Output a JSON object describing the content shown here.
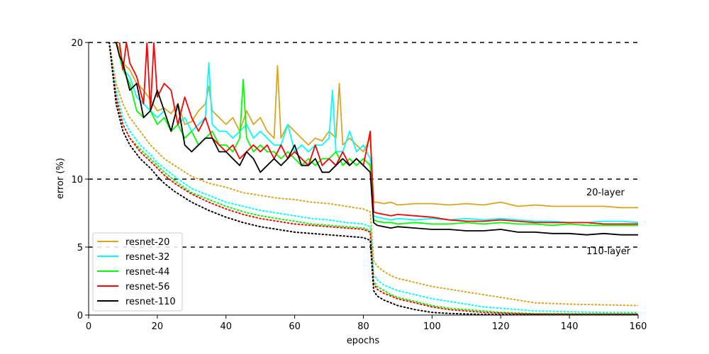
{
  "chart_data": {
    "type": "line",
    "xlabel": "epochs",
    "ylabel": "error (%)",
    "xlim": [
      0,
      160
    ],
    "ylim": [
      0,
      20
    ],
    "xticks": [
      "0",
      "20",
      "40",
      "60",
      "80",
      "100",
      "120",
      "140",
      "160"
    ],
    "yticks": [
      "0",
      "5",
      "10",
      "20"
    ],
    "reference_lines": [
      5,
      10,
      20
    ],
    "grid": false,
    "legend_location": "lower-left",
    "annotations": [
      {
        "text": "20-layer",
        "x": 145,
        "y": 9.0
      },
      {
        "text": "110-layer",
        "x": 145,
        "y": 4.7
      }
    ],
    "series": [
      {
        "name": "resnet-20",
        "color": "#DAA520",
        "test": {
          "x": [
            7,
            8,
            9,
            10,
            12,
            14,
            16,
            18,
            20,
            22,
            24,
            26,
            28,
            30,
            32,
            34,
            35,
            36,
            38,
            40,
            42,
            44,
            46,
            48,
            50,
            52,
            54,
            55,
            56,
            58,
            60,
            62,
            64,
            66,
            68,
            70,
            72,
            73,
            74,
            76,
            78,
            80,
            82,
            83,
            84,
            86,
            88,
            90,
            95,
            100,
            105,
            110,
            115,
            120,
            125,
            130,
            135,
            140,
            145,
            150,
            155,
            160
          ],
          "y": [
            20,
            20,
            19.5,
            18.5,
            18.0,
            17.0,
            16.5,
            15.8,
            15.0,
            15.2,
            14.8,
            15.5,
            14.0,
            14.2,
            15.0,
            15.5,
            16.8,
            15.0,
            14.5,
            14.0,
            14.5,
            13.5,
            15.0,
            14.0,
            14.5,
            13.5,
            13.0,
            18.3,
            13.0,
            14.0,
            13.5,
            13.0,
            12.5,
            13.0,
            12.8,
            13.5,
            13.0,
            17.0,
            12.5,
            13.0,
            12.5,
            12.0,
            13.0,
            8.3,
            8.3,
            8.2,
            8.3,
            8.1,
            8.2,
            8.2,
            8.1,
            8.2,
            8.1,
            8.3,
            8.0,
            8.1,
            8.0,
            8.0,
            8.0,
            8.0,
            7.9,
            7.9
          ]
        },
        "train": {
          "x": [
            6,
            8,
            10,
            12,
            15,
            18,
            20,
            22,
            25,
            30,
            35,
            40,
            45,
            50,
            55,
            60,
            65,
            70,
            75,
            80,
            82,
            83,
            84,
            86,
            88,
            90,
            95,
            100,
            105,
            110,
            115,
            120,
            125,
            130,
            140,
            150,
            160
          ],
          "y": [
            20,
            17,
            15.5,
            14.5,
            13.5,
            12.5,
            12.0,
            11.5,
            11.0,
            10.2,
            9.7,
            9.4,
            9.0,
            8.8,
            8.6,
            8.5,
            8.3,
            8.2,
            8.0,
            7.8,
            7.6,
            4.0,
            3.6,
            3.2,
            2.9,
            2.7,
            2.4,
            2.1,
            1.9,
            1.7,
            1.5,
            1.3,
            1.1,
            0.9,
            0.8,
            0.75,
            0.7
          ]
        }
      },
      {
        "name": "resnet-32",
        "color": "#00FFFF",
        "test": {
          "x": [
            7,
            8,
            10,
            12,
            14,
            16,
            18,
            20,
            22,
            24,
            26,
            28,
            30,
            32,
            34,
            35,
            36,
            38,
            40,
            42,
            44,
            46,
            48,
            50,
            52,
            54,
            56,
            58,
            60,
            62,
            64,
            66,
            68,
            70,
            71,
            72,
            74,
            76,
            78,
            80,
            82,
            83,
            84,
            86,
            88,
            90,
            95,
            100,
            105,
            110,
            115,
            120,
            125,
            130,
            135,
            140,
            145,
            150,
            155,
            160
          ],
          "y": [
            20,
            20,
            18.0,
            17.5,
            16.0,
            15.5,
            15.0,
            14.5,
            15.0,
            13.5,
            14.0,
            14.5,
            13.5,
            14.0,
            14.5,
            18.5,
            14.0,
            13.5,
            13.5,
            13.0,
            13.5,
            14.0,
            13.0,
            13.5,
            13.0,
            12.5,
            12.5,
            14.0,
            12.0,
            12.5,
            12.0,
            12.5,
            12.5,
            13.0,
            16.5,
            12.0,
            12.0,
            13.5,
            12.0,
            12.5,
            11.5,
            7.3,
            7.2,
            7.1,
            7.0,
            7.1,
            7.0,
            7.1,
            7.0,
            7.1,
            7.0,
            7.1,
            7.0,
            6.9,
            6.9,
            6.8,
            6.8,
            6.9,
            6.9,
            6.8
          ]
        },
        "train": {
          "x": [
            6,
            8,
            10,
            12,
            15,
            18,
            20,
            22,
            25,
            30,
            35,
            40,
            45,
            50,
            55,
            60,
            65,
            70,
            75,
            80,
            82,
            83,
            84,
            86,
            88,
            90,
            95,
            100,
            105,
            110,
            115,
            120,
            125,
            130,
            140,
            150,
            160
          ],
          "y": [
            20,
            16.5,
            14.5,
            13.5,
            12.5,
            11.8,
            11.2,
            10.8,
            10.2,
            9.3,
            8.8,
            8.3,
            8.0,
            7.7,
            7.5,
            7.3,
            7.1,
            7.0,
            6.8,
            6.7,
            6.5,
            3.0,
            2.6,
            2.2,
            2.0,
            1.8,
            1.5,
            1.2,
            1.0,
            0.8,
            0.6,
            0.5,
            0.4,
            0.3,
            0.25,
            0.2,
            0.2
          ]
        }
      },
      {
        "name": "resnet-44",
        "color": "#00FF00",
        "test": {
          "x": [
            7,
            8,
            10,
            12,
            14,
            16,
            18,
            20,
            22,
            24,
            26,
            28,
            30,
            32,
            34,
            36,
            38,
            40,
            42,
            44,
            45,
            46,
            48,
            50,
            52,
            54,
            56,
            58,
            60,
            62,
            64,
            66,
            68,
            70,
            72,
            74,
            76,
            78,
            80,
            82,
            83,
            84,
            86,
            88,
            90,
            95,
            100,
            105,
            110,
            115,
            120,
            125,
            130,
            135,
            140,
            145,
            150,
            155,
            160
          ],
          "y": [
            20,
            20,
            18.0,
            17.0,
            15.0,
            14.5,
            15.0,
            14.0,
            14.5,
            13.5,
            14.0,
            13.0,
            13.5,
            12.5,
            13.0,
            13.5,
            12.5,
            12.5,
            12.0,
            13.0,
            17.3,
            13.0,
            12.0,
            12.5,
            12.0,
            12.0,
            11.5,
            12.0,
            11.5,
            11.0,
            11.5,
            11.0,
            11.5,
            11.5,
            12.0,
            11.0,
            11.5,
            11.0,
            11.5,
            11.0,
            7.0,
            6.9,
            6.8,
            6.8,
            6.7,
            6.8,
            6.7,
            6.7,
            6.8,
            6.7,
            6.8,
            6.7,
            6.7,
            6.6,
            6.7,
            6.6,
            6.6,
            6.6,
            6.6
          ]
        },
        "train": {
          "x": [
            6,
            8,
            10,
            12,
            15,
            18,
            20,
            22,
            25,
            30,
            35,
            40,
            45,
            50,
            55,
            60,
            65,
            70,
            75,
            80,
            82,
            83,
            84,
            86,
            88,
            90,
            95,
            100,
            105,
            110,
            115,
            120,
            125,
            130,
            140,
            150,
            160
          ],
          "y": [
            20,
            16.0,
            14.0,
            13.0,
            12.2,
            11.5,
            11.0,
            10.5,
            9.9,
            9.0,
            8.5,
            8.0,
            7.6,
            7.3,
            7.1,
            6.9,
            6.7,
            6.6,
            6.5,
            6.4,
            6.2,
            2.5,
            2.1,
            1.8,
            1.5,
            1.3,
            1.0,
            0.7,
            0.5,
            0.4,
            0.3,
            0.2,
            0.15,
            0.1,
            0.1,
            0.1,
            0.1
          ]
        }
      },
      {
        "name": "resnet-56",
        "color": "#FF0000",
        "test": {
          "x": [
            7,
            8,
            9,
            10,
            11,
            12,
            14,
            16,
            17,
            18,
            19,
            20,
            22,
            24,
            26,
            28,
            30,
            32,
            34,
            36,
            38,
            40,
            42,
            44,
            46,
            48,
            50,
            52,
            54,
            56,
            58,
            60,
            62,
            64,
            66,
            68,
            70,
            72,
            74,
            76,
            78,
            80,
            82,
            83,
            84,
            86,
            88,
            90,
            95,
            100,
            105,
            110,
            115,
            120,
            125,
            130,
            135,
            140,
            145,
            150,
            155,
            160
          ],
          "y": [
            20,
            20,
            20,
            18.0,
            20.0,
            18.5,
            17.5,
            15.5,
            20.0,
            15.0,
            20.0,
            16.0,
            17.0,
            16.5,
            14.0,
            16.0,
            14.5,
            13.5,
            14.5,
            13.0,
            12.5,
            12.0,
            12.5,
            11.5,
            12.0,
            12.5,
            12.0,
            12.5,
            11.5,
            12.5,
            11.5,
            12.0,
            11.5,
            11.0,
            12.5,
            11.0,
            11.5,
            11.0,
            12.0,
            11.0,
            11.5,
            11.0,
            13.5,
            7.6,
            7.5,
            7.4,
            7.3,
            7.4,
            7.3,
            7.2,
            7.0,
            6.9,
            6.9,
            7.0,
            6.9,
            6.8,
            6.8,
            6.8,
            6.8,
            6.7,
            6.7,
            6.7
          ]
        },
        "train": {
          "x": [
            6,
            8,
            10,
            12,
            15,
            18,
            20,
            22,
            25,
            30,
            35,
            40,
            45,
            50,
            55,
            60,
            65,
            70,
            75,
            80,
            82,
            83,
            84,
            86,
            88,
            90,
            95,
            100,
            105,
            110,
            115,
            120,
            125,
            130,
            140,
            150,
            160
          ],
          "y": [
            20,
            16.0,
            14.0,
            13.0,
            12.0,
            11.3,
            10.8,
            10.3,
            9.7,
            8.9,
            8.3,
            7.8,
            7.4,
            7.1,
            6.9,
            6.7,
            6.6,
            6.5,
            6.4,
            6.3,
            6.1,
            2.3,
            1.9,
            1.6,
            1.4,
            1.2,
            0.9,
            0.6,
            0.4,
            0.3,
            0.2,
            0.15,
            0.1,
            0.08,
            0.07,
            0.06,
            0.06
          ]
        }
      },
      {
        "name": "resnet-110",
        "color": "#000000",
        "test": {
          "x": [
            7,
            8,
            9,
            10,
            12,
            14,
            16,
            18,
            20,
            22,
            24,
            26,
            28,
            30,
            32,
            34,
            36,
            38,
            40,
            42,
            44,
            46,
            48,
            50,
            52,
            54,
            56,
            58,
            60,
            62,
            64,
            66,
            68,
            70,
            72,
            74,
            76,
            78,
            80,
            82,
            83,
            84,
            86,
            88,
            90,
            95,
            100,
            105,
            110,
            115,
            120,
            125,
            130,
            135,
            140,
            145,
            150,
            155,
            160
          ],
          "y": [
            20,
            20,
            19.0,
            18.5,
            16.5,
            17.0,
            14.5,
            15.0,
            16.5,
            15.0,
            13.5,
            15.5,
            12.5,
            12.0,
            12.5,
            13.0,
            13.0,
            12.0,
            12.0,
            11.5,
            11.0,
            12.0,
            11.5,
            10.5,
            11.0,
            11.5,
            11.0,
            11.5,
            12.5,
            11.0,
            11.0,
            11.5,
            10.5,
            10.5,
            11.0,
            11.5,
            11.0,
            11.5,
            11.0,
            10.5,
            6.8,
            6.6,
            6.5,
            6.4,
            6.5,
            6.4,
            6.3,
            6.3,
            6.2,
            6.2,
            6.3,
            6.1,
            6.1,
            6.0,
            6.0,
            5.9,
            6.0,
            5.9,
            5.9
          ]
        },
        "train": {
          "x": [
            6,
            8,
            10,
            12,
            15,
            18,
            20,
            22,
            25,
            30,
            35,
            40,
            45,
            50,
            55,
            60,
            65,
            70,
            75,
            80,
            82,
            83,
            84,
            86,
            88,
            90,
            95,
            100,
            105,
            110,
            115,
            120,
            125,
            130,
            140,
            150,
            160
          ],
          "y": [
            20,
            15.5,
            13.5,
            12.5,
            11.5,
            10.8,
            10.2,
            9.7,
            9.1,
            8.3,
            7.7,
            7.2,
            6.8,
            6.5,
            6.3,
            6.1,
            6.0,
            5.9,
            5.8,
            5.7,
            5.5,
            1.8,
            1.4,
            1.1,
            0.9,
            0.7,
            0.4,
            0.2,
            0.12,
            0.08,
            0.05,
            0.04,
            0.03,
            0.03,
            0.02,
            0.02,
            0.02
          ]
        }
      }
    ]
  }
}
